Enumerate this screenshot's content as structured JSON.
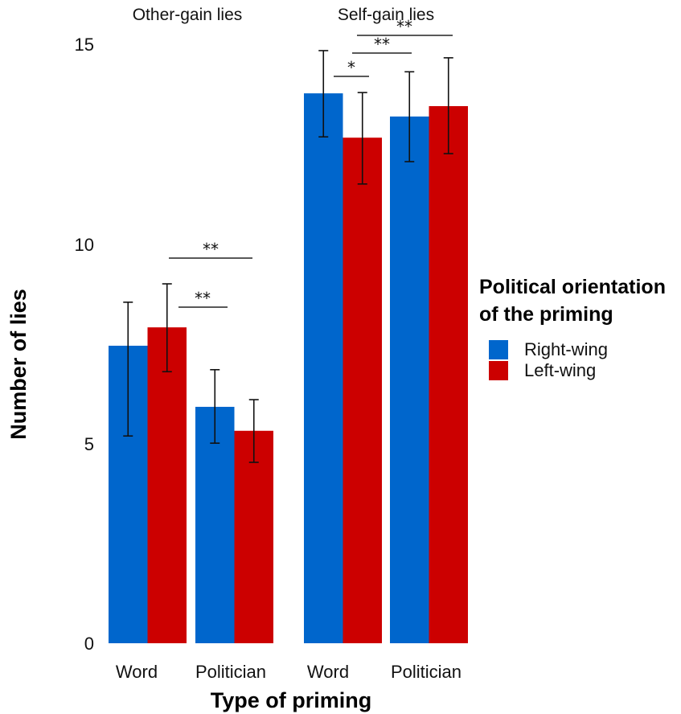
{
  "chart_data": {
    "type": "bar",
    "title": "",
    "xlabel": "Type of priming",
    "ylabel": "Number of lies",
    "ylim": [
      0,
      15
    ],
    "yticks": [
      0,
      5,
      10,
      15
    ],
    "grid": false,
    "legend_position": "right",
    "legend_title": "Political orientation\nof the priming",
    "facets": [
      "Other-gain lies",
      "Self-gain lies"
    ],
    "categories": [
      "Word",
      "Politician",
      "Word",
      "Politician"
    ],
    "category_facets": [
      "Other-gain lies",
      "Other-gain lies",
      "Self-gain lies",
      "Self-gain lies"
    ],
    "series": [
      {
        "name": "Right-wing",
        "color": "#0066CC",
        "values": [
          7.45,
          5.92,
          13.77,
          13.19
        ],
        "error_upper": [
          8.54,
          6.85,
          14.84,
          14.31
        ],
        "error_lower": [
          5.19,
          5.01,
          12.68,
          12.06
        ]
      },
      {
        "name": "Left-wing",
        "color": "#CC0000",
        "values": [
          7.91,
          5.32,
          12.66,
          13.45
        ],
        "error_upper": [
          9.0,
          6.1,
          13.79,
          14.66
        ],
        "error_lower": [
          6.8,
          4.53,
          11.5,
          12.26
        ]
      }
    ],
    "significance": [
      {
        "facet": "Other-gain lies",
        "label": "**",
        "from": "Word Left-wing",
        "to": "Politician Left-wing"
      },
      {
        "facet": "Other-gain lies",
        "label": "**",
        "from": "Word Left-wing",
        "to": "Politician Right-wing"
      },
      {
        "facet": "Self-gain lies",
        "label": "**",
        "from": "Word Left-wing",
        "to": "Politician Left-wing"
      },
      {
        "facet": "Self-gain lies",
        "label": "**",
        "from": "Word Left-wing",
        "to": "Politician Right-wing"
      },
      {
        "facet": "Self-gain lies",
        "label": "*",
        "from": "Word Right-wing",
        "to": "Word Left-wing"
      }
    ]
  },
  "axes": {
    "x_title": "Type of priming",
    "y_title": "Number of lies",
    "y_ticks": [
      "0",
      "5",
      "10",
      "15"
    ],
    "x_ticks": [
      "Word",
      "Politician",
      "Word",
      "Politician"
    ]
  },
  "facets": {
    "left": "Other-gain lies",
    "right": "Self-gain lies"
  },
  "legend": {
    "title": "Political orientation\nof the priming",
    "items": [
      {
        "label": "Right-wing",
        "color": "#0066CC"
      },
      {
        "label": "Left-wing",
        "color": "#CC0000"
      }
    ]
  }
}
